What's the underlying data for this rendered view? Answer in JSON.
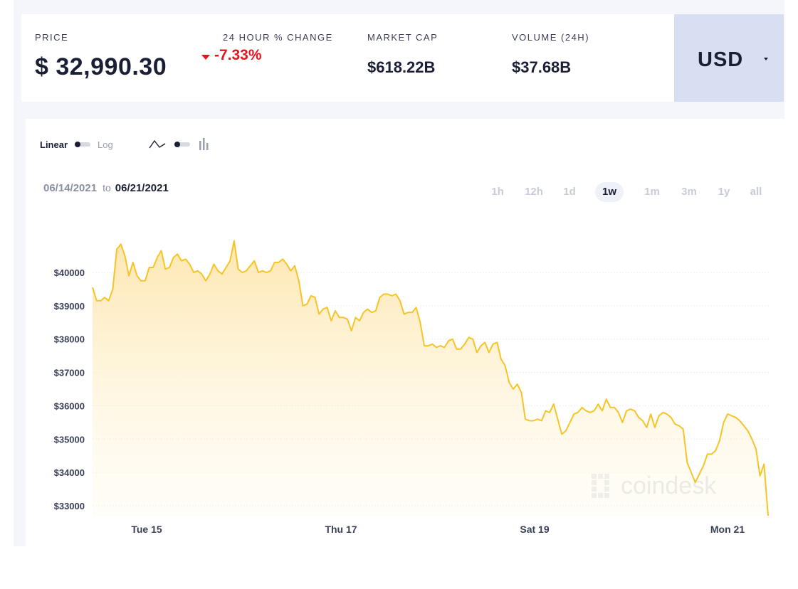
{
  "header": {
    "price_label": "PRICE",
    "price_value": "$ 32,990.30",
    "change_label": "24 HOUR % CHANGE",
    "change_value": "-7.33%",
    "change_icon": "triangle-down-icon",
    "market_cap_label": "MARKET CAP",
    "market_cap_value": "$618.22B",
    "volume_label": "VOLUME (24H)",
    "volume_value": "$37.68B",
    "currency": "USD",
    "currency_icon": "caret-down-icon"
  },
  "controls": {
    "scale_linear": "Linear",
    "scale_log": "Log",
    "line_icon": "line-chart-icon",
    "bar_icon": "bar-chart-icon"
  },
  "date_range": {
    "from": "06/14/2021",
    "to_word": "to",
    "to": "06/21/2021"
  },
  "ranges": [
    "1h",
    "12h",
    "1d",
    "1w",
    "1m",
    "3m",
    "1y",
    "all"
  ],
  "active_range": "1w",
  "watermark": "coindesk",
  "colors": {
    "line": "#f7c427",
    "down": "#e8141c",
    "dark": "#1a1f36"
  },
  "chart_data": {
    "type": "area",
    "y_ticks": [
      "$40000",
      "$39000",
      "$38000",
      "$37000",
      "$36000",
      "$35000",
      "$34000",
      "$33000"
    ],
    "x_ticks": [
      "Tue 15",
      "Thu 17",
      "Sat 19",
      "Mon 21"
    ],
    "ylim": [
      32700,
      41200
    ],
    "grid": true,
    "series": [
      {
        "values": [
          39550,
          39150,
          39150,
          39250,
          39150,
          39500,
          40700,
          40850,
          40500,
          39900,
          40300,
          39900,
          39750,
          39750,
          40150,
          40150,
          40450,
          40650,
          40100,
          40150,
          40450,
          40550,
          40350,
          40400,
          40250,
          40000,
          40050,
          39950,
          39750,
          39950,
          40250,
          40050,
          39950,
          40150,
          40350,
          40950,
          40100,
          40000,
          40050,
          40200,
          40350,
          40000,
          40050,
          40000,
          40050,
          40300,
          40300,
          40400,
          40250,
          40050,
          40200,
          39750,
          39000,
          39050,
          39300,
          39250,
          38750,
          38900,
          38950,
          38550,
          38850,
          38650,
          38650,
          38600,
          38250,
          38650,
          38550,
          38800,
          38900,
          38800,
          38850,
          39250,
          39350,
          39350,
          39300,
          39350,
          39150,
          38750,
          38800,
          38800,
          38950,
          38500,
          37800,
          37800,
          37850,
          37750,
          37800,
          37750,
          37950,
          38000,
          37700,
          37700,
          37850,
          38050,
          38000,
          37600,
          37800,
          37900,
          37600,
          37850,
          37900,
          37400,
          37200,
          36700,
          36500,
          36650,
          36400,
          35600,
          35550,
          35550,
          35600,
          35550,
          35850,
          35800,
          36050,
          35600,
          35150,
          35250,
          35500,
          35750,
          35800,
          35950,
          35850,
          35800,
          35850,
          36050,
          35850,
          36200,
          35950,
          35950,
          35800,
          35500,
          35850,
          35900,
          35850,
          35650,
          35550,
          35350,
          35750,
          35350,
          35700,
          35800,
          35750,
          35650,
          35450,
          35400,
          35300,
          34300,
          34000,
          33700,
          33950,
          34200,
          34550,
          34550,
          34650,
          34950,
          35500,
          35750,
          35700,
          35650,
          35550,
          35400,
          35250,
          35000,
          34700,
          33900,
          34250,
          32700
        ]
      }
    ]
  }
}
